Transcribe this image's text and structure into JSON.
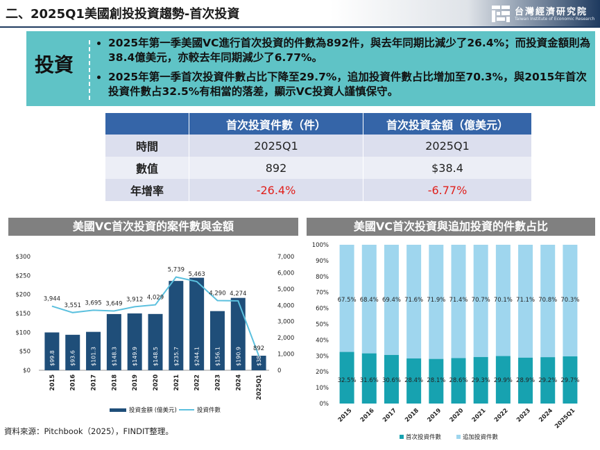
{
  "header": {
    "title": "二、2025Q1美國創投投資趨勢-首次投資",
    "logo_cn": "台灣經濟研究院",
    "logo_en": "Taiwan Institute of Economic Research"
  },
  "summary": {
    "label": "投資",
    "bullets": [
      "2025年第一季美國VC進行首次投資的件數為892件，與去年同期比減少了26.4%；而投資金額則為38.4億美元，亦較去年同期減少了6.77%。",
      "2025年第一季首次投資件數占比下降至29.7%，追加投資件數占比增加至70.3%，與2015年首次投資件數占32.5%有相當的落差，顯示VC投資人謹慎保守。"
    ]
  },
  "table": {
    "headers": [
      "",
      "首次投資件數（件）",
      "首次投資金額（億美元）"
    ],
    "rows": [
      {
        "label": "時間",
        "c1": "2025Q1",
        "c2": "2025Q1"
      },
      {
        "label": "數值",
        "c1": "892",
        "c2": "$38.4"
      },
      {
        "label": "年增率",
        "c1": "-26.4%",
        "c2": "-6.77%"
      }
    ]
  },
  "colors": {
    "bar_navy": "#1f4e79",
    "line_cyan": "#5bc0de",
    "first_teal": "#17a2b0",
    "followon_light": "#9fd6ee",
    "negative": "#e0201c"
  },
  "chart_data": [
    {
      "type": "bar",
      "title": "美國VC首次投資的案件數與金額",
      "categories": [
        "2015",
        "2016",
        "2017",
        "2018",
        "2019",
        "2020",
        "2021",
        "2022",
        "2023",
        "2024",
        "2025Q1"
      ],
      "series": [
        {
          "name": "投資金額 (億美元)",
          "kind": "bar",
          "axis": "left",
          "values": [
            99.8,
            93.6,
            101.3,
            148.3,
            149.9,
            148.5,
            235.7,
            244.1,
            156.1,
            190.9,
            38.4
          ],
          "labels": [
            "$99.8",
            "$93.6",
            "$101.3",
            "$148.3",
            "$149.9",
            "$148.5",
            "$235.7",
            "$244.1",
            "$156.1",
            "$190.9",
            "$38.4"
          ]
        },
        {
          "name": "投資件數",
          "kind": "line",
          "axis": "right",
          "values": [
            3944,
            3551,
            3695,
            3649,
            3912,
            4029,
            5739,
            5463,
            4290,
            4274,
            892
          ],
          "labels": [
            "3,944",
            "3,551",
            "3,695",
            "3,649",
            "3,912",
            "4,029",
            "5,739",
            "5,463",
            "4,290",
            "4,274",
            "892"
          ]
        }
      ],
      "left_axis": {
        "min": 0,
        "max": 300,
        "ticks": [
          "$0",
          "$50",
          "$100",
          "$150",
          "$200",
          "$250",
          "$300"
        ]
      },
      "right_axis": {
        "min": 0,
        "max": 7000,
        "ticks": [
          "0",
          "1,000",
          "2,000",
          "3,000",
          "4,000",
          "5,000",
          "6,000",
          "7,000"
        ]
      },
      "legend_position": "bottom"
    },
    {
      "type": "bar",
      "stacked": true,
      "title": "美國VC首次投資與追加投資的件數占比",
      "categories": [
        "2015",
        "2016",
        "2017",
        "2018",
        "2019",
        "2020",
        "2021",
        "2022",
        "2023",
        "2024",
        "2025Q1"
      ],
      "series": [
        {
          "name": "首次投資件數",
          "values": [
            32.5,
            31.6,
            30.6,
            28.4,
            28.1,
            28.6,
            29.3,
            29.9,
            28.9,
            29.2,
            29.7
          ],
          "labels": [
            "32.5%",
            "31.6%",
            "30.6%",
            "28.4%",
            "28.1%",
            "28.6%",
            "29.3%",
            "29.9%",
            "28.9%",
            "29.2%",
            "29.7%"
          ]
        },
        {
          "name": "追加投資件數",
          "values": [
            67.5,
            68.4,
            69.4,
            71.6,
            71.9,
            71.4,
            70.7,
            70.1,
            71.1,
            70.8,
            70.3
          ],
          "labels": [
            "67.5%",
            "68.4%",
            "69.4%",
            "71.6%",
            "71.9%",
            "71.4%",
            "70.7%",
            "70.1%",
            "71.1%",
            "70.8%",
            "70.3%"
          ]
        }
      ],
      "y_axis": {
        "min": 0,
        "max": 100,
        "ticks": [
          "0%",
          "10%",
          "20%",
          "30%",
          "40%",
          "50%",
          "60%",
          "70%",
          "80%",
          "90%",
          "100%"
        ]
      },
      "legend_position": "bottom"
    }
  ],
  "source": "資料來源：Pitchbook（2025），FINDIT整理。"
}
